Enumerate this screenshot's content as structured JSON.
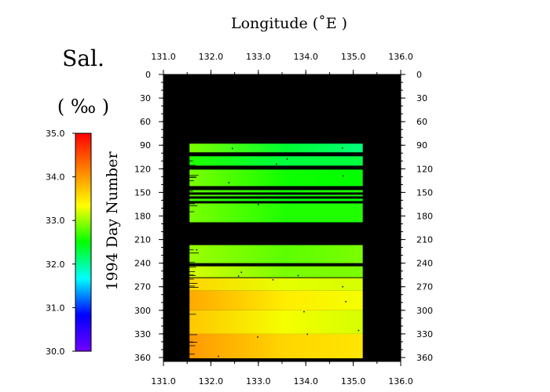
{
  "chart_data": {
    "type": "heatmap",
    "title": "Longitude (˚E )",
    "xlabel": "Longitude (˚E )",
    "ylabel": "1994  Day Number",
    "xlim": [
      131.0,
      136.0
    ],
    "ylim": [
      0,
      365
    ],
    "y_axis_inverted": true,
    "x_ticks": [
      "131.0",
      "132.0",
      "133.0",
      "134.0",
      "135.0",
      "136.0"
    ],
    "y_ticks": [
      "0",
      "30",
      "60",
      "90",
      "120",
      "150",
      "180",
      "210",
      "240",
      "270",
      "300",
      "330",
      "360"
    ],
    "colorbar": {
      "title": "Sal.",
      "unit": "( ‰ )",
      "range": [
        30.0,
        35.0
      ],
      "ticks": [
        "35.0",
        "34.0",
        "33.0",
        "32.0",
        "31.0",
        "30.0"
      ],
      "colors": [
        "#7000ff",
        "#0000ff",
        "#00ffff",
        "#00ff00",
        "#ffff00",
        "#ff8000",
        "#ff0000"
      ]
    },
    "background_color": "#000000",
    "data_extent_lon": [
      131.55,
      135.2
    ],
    "bands": [
      {
        "day_start": 88,
        "day_end": 99,
        "salinity_west": 32.9,
        "salinity_east": 32.1
      },
      {
        "day_start": 104,
        "day_end": 116,
        "salinity_west": 32.6,
        "salinity_east": 32.3
      },
      {
        "day_start": 121,
        "day_end": 142,
        "salinity_west": 32.9,
        "salinity_east": 32.5
      },
      {
        "day_start": 147,
        "day_end": 150,
        "salinity_west": 32.8,
        "salinity_east": 32.6
      },
      {
        "day_start": 153,
        "day_end": 155,
        "salinity_west": 32.8,
        "salinity_east": 32.6
      },
      {
        "day_start": 158,
        "day_end": 161,
        "salinity_west": 32.7,
        "salinity_east": 32.5
      },
      {
        "day_start": 164,
        "day_end": 188,
        "salinity_west": 32.9,
        "salinity_east": 32.6
      },
      {
        "day_start": 217,
        "day_end": 240,
        "salinity_west": 33.0,
        "salinity_east": 32.9
      },
      {
        "day_start": 244,
        "day_end": 258,
        "salinity_west": 33.2,
        "salinity_east": 32.9
      },
      {
        "day_start": 259,
        "day_end": 275,
        "salinity_west": 33.6,
        "salinity_east": 33.2
      },
      {
        "day_start": 275,
        "day_end": 300,
        "salinity_west": 33.9,
        "salinity_east": 33.3
      },
      {
        "day_start": 300,
        "day_end": 330,
        "salinity_west": 33.7,
        "salinity_east": 33.2
      },
      {
        "day_start": 330,
        "day_end": 361,
        "salinity_west": 34.0,
        "salinity_east": 33.5
      }
    ]
  }
}
